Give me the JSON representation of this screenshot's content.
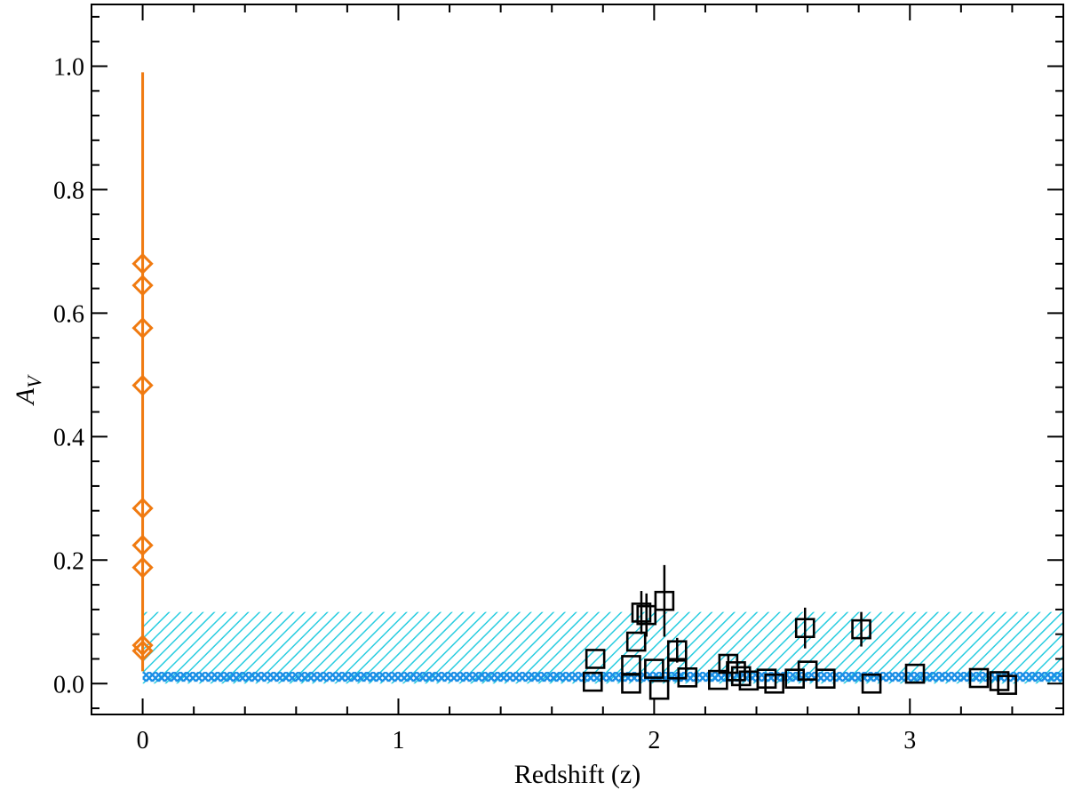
{
  "chart_data": {
    "type": "scatter",
    "xlabel": "Redshift (z)",
    "ylabel_main": "A",
    "ylabel_sub": "V",
    "xlim": [
      -0.2,
      3.6
    ],
    "ylim": [
      -0.05,
      1.1
    ],
    "xticks": [
      0,
      1,
      2,
      3
    ],
    "xtick_labels": [
      "0",
      "1",
      "2",
      "3"
    ],
    "yticks": [
      0.0,
      0.2,
      0.4,
      0.6,
      0.8,
      1.0
    ],
    "ytick_labels": [
      "0.0",
      "0.2",
      "0.4",
      "0.6",
      "0.8",
      "1.0"
    ],
    "grid": false,
    "colors": {
      "orange": "#f07a10",
      "black": "#000000",
      "band_upper": "#29cde0",
      "band_lower": "#1a8ee6"
    },
    "bands": [
      {
        "x": [
          0,
          3.6
        ],
        "y": [
          0.0,
          0.116
        ],
        "style": "hatch",
        "color": "#29cde0"
      },
      {
        "x": [
          0,
          3.6
        ],
        "y": [
          0.003,
          0.019
        ],
        "style": "crosshatch",
        "color": "#1a8ee6"
      }
    ],
    "series": [
      {
        "marker": "diamond",
        "color": "#f07a10",
        "errorbar": {
          "x": 0,
          "y_low": 0.02,
          "y_high": 0.99
        },
        "points": [
          {
            "x": 0,
            "y": 0.68
          },
          {
            "x": 0,
            "y": 0.645
          },
          {
            "x": 0,
            "y": 0.576
          },
          {
            "x": 0,
            "y": 0.483
          },
          {
            "x": 0,
            "y": 0.284
          },
          {
            "x": 0,
            "y": 0.224
          },
          {
            "x": 0,
            "y": 0.188
          },
          {
            "x": 0,
            "y": 0.062
          },
          {
            "x": 0,
            "y": 0.053
          }
        ]
      },
      {
        "marker": "square",
        "color": "#000000",
        "points": [
          {
            "x": 1.77,
            "y": 0.04
          },
          {
            "x": 1.76,
            "y": 0.003
          },
          {
            "x": 1.91,
            "y": 0.03
          },
          {
            "x": 1.91,
            "y": 0.0
          },
          {
            "x": 1.93,
            "y": 0.068
          },
          {
            "x": 1.95,
            "y": 0.115,
            "err": 0.035
          },
          {
            "x": 1.97,
            "y": 0.111,
            "err": 0.035
          },
          {
            "x": 2.0,
            "y": 0.024
          },
          {
            "x": 2.02,
            "y": -0.01
          },
          {
            "x": 2.04,
            "y": 0.134,
            "err": 0.058
          },
          {
            "x": 2.09,
            "y": 0.023
          },
          {
            "x": 2.09,
            "y": 0.054,
            "err": 0.02
          },
          {
            "x": 2.13,
            "y": 0.01
          },
          {
            "x": 2.25,
            "y": 0.006
          },
          {
            "x": 2.29,
            "y": 0.032,
            "err": 0.015
          },
          {
            "x": 2.32,
            "y": 0.02
          },
          {
            "x": 2.34,
            "y": 0.012
          },
          {
            "x": 2.37,
            "y": 0.005
          },
          {
            "x": 2.44,
            "y": 0.008
          },
          {
            "x": 2.47,
            "y": 0.0
          },
          {
            "x": 2.55,
            "y": 0.008
          },
          {
            "x": 2.59,
            "y": 0.09,
            "err": 0.033
          },
          {
            "x": 2.6,
            "y": 0.021
          },
          {
            "x": 2.67,
            "y": 0.008
          },
          {
            "x": 2.81,
            "y": 0.088,
            "err": 0.028
          },
          {
            "x": 2.85,
            "y": 0.0
          },
          {
            "x": 3.02,
            "y": 0.016
          },
          {
            "x": 3.27,
            "y": 0.009
          },
          {
            "x": 3.35,
            "y": 0.004
          },
          {
            "x": 3.38,
            "y": -0.002
          }
        ]
      }
    ]
  }
}
